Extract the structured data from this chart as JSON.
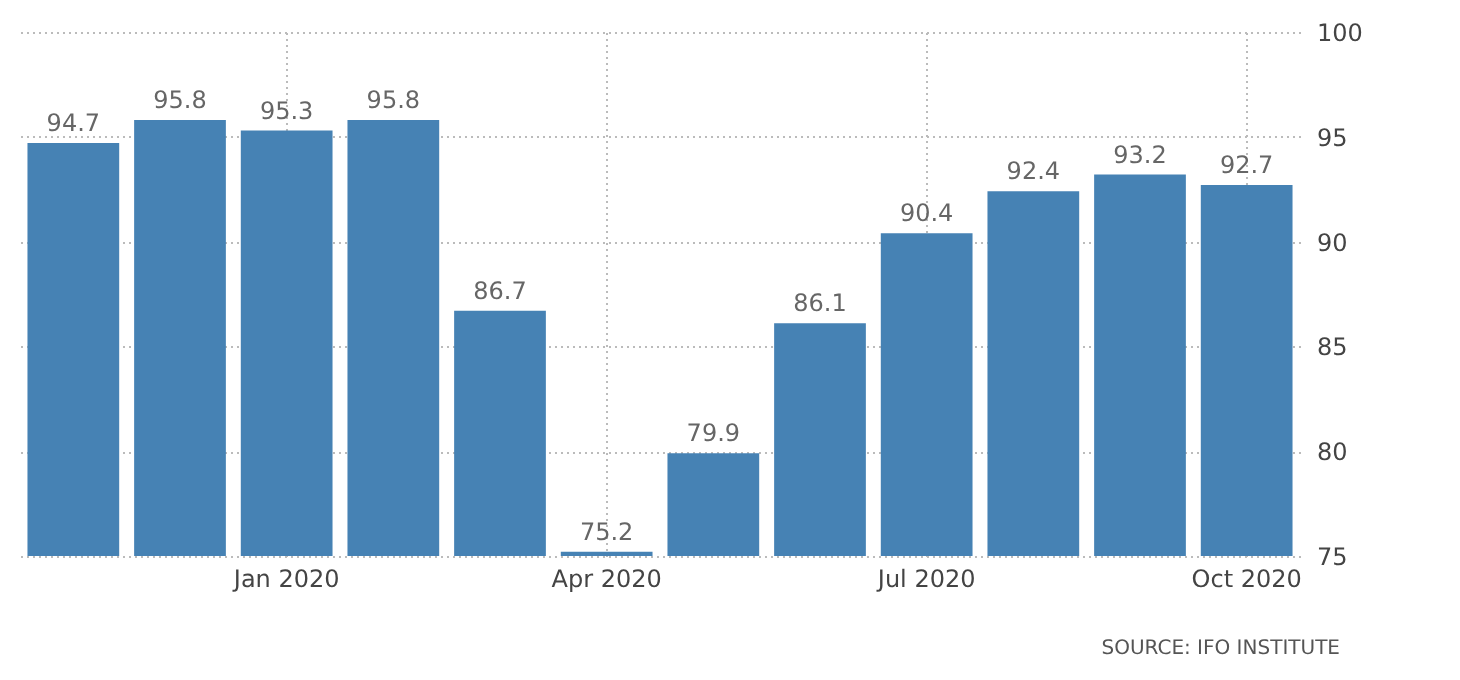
{
  "chart_data": {
    "type": "bar",
    "categories": [
      null,
      null,
      "Jan 2020",
      null,
      null,
      "Apr 2020",
      null,
      null,
      "Jul 2020",
      null,
      null,
      "Oct 2020"
    ],
    "values": [
      94.7,
      95.8,
      95.3,
      95.8,
      86.7,
      75.2,
      79.9,
      86.1,
      90.4,
      92.4,
      93.2,
      92.7
    ],
    "color": "#4682b4",
    "ylim": [
      75,
      100
    ],
    "yticks": [
      75,
      80,
      85,
      90,
      95,
      100
    ],
    "grid": true,
    "data_labels": true,
    "annotations": [
      "SOURCE: IFO INSTITUTE"
    ]
  }
}
